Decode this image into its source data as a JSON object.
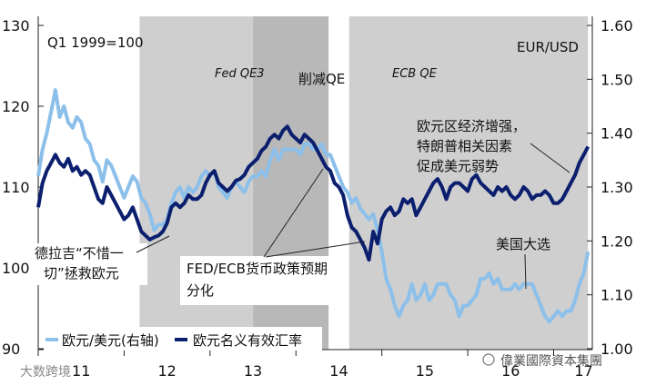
{
  "chart_data": {
    "type": "line",
    "title": "",
    "index_note": "Q1 1999=100",
    "right_axis_title": "EUR/USD",
    "x_ticks": [
      "11",
      "12",
      "13",
      "14",
      "15",
      "16",
      "17"
    ],
    "left_axis": {
      "ylim": [
        90,
        130
      ],
      "ticks": [
        "90",
        "100",
        "110",
        "120",
        "130"
      ]
    },
    "right_axis": {
      "ylim": [
        1.0,
        1.6
      ],
      "ticks": [
        "1.00",
        "1.10",
        "1.20",
        "1.30",
        "1.40",
        "1.50",
        "1.60"
      ]
    },
    "x_range": [
      2011.0,
      2017.45
    ],
    "shaded_periods": [
      {
        "label": "Fed QE3",
        "start": 2012.18,
        "end": 2013.5,
        "color": "#cfcfcf"
      },
      {
        "label": "削减QE",
        "start": 2013.5,
        "end": 2014.38,
        "color": "#b8b8b8"
      },
      {
        "label": "ECB QE",
        "start": 2014.62,
        "end": 2017.4,
        "color": "#cfcfcf"
      }
    ],
    "series": [
      {
        "name": "欧元/美元(右轴)",
        "axis": "right",
        "color": "#8cc0ea",
        "x": [
          2011.0,
          2011.05,
          2011.1,
          2011.15,
          2011.2,
          2011.25,
          2011.3,
          2011.35,
          2011.4,
          2011.45,
          2011.5,
          2011.55,
          2011.6,
          2011.65,
          2011.7,
          2011.75,
          2011.8,
          2011.85,
          2011.9,
          2011.95,
          2012.0,
          2012.05,
          2012.1,
          2012.15,
          2012.2,
          2012.25,
          2012.3,
          2012.35,
          2012.4,
          2012.45,
          2012.5,
          2012.55,
          2012.6,
          2012.65,
          2012.7,
          2012.75,
          2012.8,
          2012.85,
          2012.9,
          2012.95,
          2013.0,
          2013.05,
          2013.1,
          2013.15,
          2013.2,
          2013.25,
          2013.3,
          2013.35,
          2013.4,
          2013.45,
          2013.5,
          2013.55,
          2013.6,
          2013.65,
          2013.7,
          2013.75,
          2013.8,
          2013.85,
          2013.9,
          2013.95,
          2014.0,
          2014.05,
          2014.1,
          2014.15,
          2014.2,
          2014.25,
          2014.3,
          2014.35,
          2014.4,
          2014.45,
          2014.5,
          2014.55,
          2014.6,
          2014.65,
          2014.7,
          2014.75,
          2014.8,
          2014.85,
          2014.9,
          2014.95,
          2015.0,
          2015.05,
          2015.1,
          2015.15,
          2015.2,
          2015.25,
          2015.3,
          2015.35,
          2015.4,
          2015.45,
          2015.5,
          2015.55,
          2015.6,
          2015.65,
          2015.7,
          2015.75,
          2015.8,
          2015.85,
          2015.9,
          2015.95,
          2016.0,
          2016.05,
          2016.1,
          2016.15,
          2016.2,
          2016.25,
          2016.3,
          2016.35,
          2016.4,
          2016.45,
          2016.5,
          2016.55,
          2016.6,
          2016.65,
          2016.7,
          2016.75,
          2016.8,
          2016.85,
          2016.9,
          2016.95,
          2017.0,
          2017.05,
          2017.1,
          2017.15,
          2017.2,
          2017.25,
          2017.3,
          2017.35,
          2017.4
        ],
        "values": [
          1.32,
          1.37,
          1.4,
          1.44,
          1.48,
          1.43,
          1.45,
          1.42,
          1.41,
          1.43,
          1.42,
          1.39,
          1.38,
          1.35,
          1.34,
          1.31,
          1.35,
          1.34,
          1.32,
          1.3,
          1.28,
          1.3,
          1.32,
          1.31,
          1.28,
          1.27,
          1.25,
          1.22,
          1.23,
          1.23,
          1.24,
          1.27,
          1.29,
          1.3,
          1.28,
          1.3,
          1.29,
          1.3,
          1.32,
          1.33,
          1.32,
          1.33,
          1.3,
          1.29,
          1.28,
          1.3,
          1.31,
          1.3,
          1.29,
          1.31,
          1.32,
          1.32,
          1.33,
          1.32,
          1.35,
          1.37,
          1.35,
          1.37,
          1.37,
          1.37,
          1.37,
          1.36,
          1.38,
          1.38,
          1.37,
          1.37,
          1.38,
          1.36,
          1.36,
          1.34,
          1.32,
          1.3,
          1.29,
          1.27,
          1.28,
          1.26,
          1.25,
          1.24,
          1.25,
          1.22,
          1.18,
          1.13,
          1.11,
          1.08,
          1.06,
          1.08,
          1.09,
          1.12,
          1.09,
          1.1,
          1.12,
          1.09,
          1.1,
          1.12,
          1.12,
          1.12,
          1.1,
          1.09,
          1.06,
          1.08,
          1.08,
          1.09,
          1.1,
          1.13,
          1.13,
          1.14,
          1.12,
          1.13,
          1.11,
          1.11,
          1.11,
          1.12,
          1.11,
          1.12,
          1.12,
          1.12,
          1.1,
          1.08,
          1.06,
          1.05,
          1.06,
          1.07,
          1.06,
          1.07,
          1.07,
          1.09,
          1.12,
          1.14,
          1.18
        ]
      },
      {
        "name": "欧元名义有效汇率",
        "axis": "left",
        "color": "#0b1f6e",
        "x": [
          2011.0,
          2011.05,
          2011.1,
          2011.15,
          2011.2,
          2011.25,
          2011.3,
          2011.35,
          2011.4,
          2011.45,
          2011.5,
          2011.55,
          2011.6,
          2011.65,
          2011.7,
          2011.75,
          2011.8,
          2011.85,
          2011.9,
          2011.95,
          2012.0,
          2012.05,
          2012.1,
          2012.15,
          2012.2,
          2012.25,
          2012.3,
          2012.35,
          2012.4,
          2012.45,
          2012.5,
          2012.55,
          2012.6,
          2012.65,
          2012.7,
          2012.75,
          2012.8,
          2012.85,
          2012.9,
          2012.95,
          2013.0,
          2013.05,
          2013.1,
          2013.15,
          2013.2,
          2013.25,
          2013.3,
          2013.35,
          2013.4,
          2013.45,
          2013.5,
          2013.55,
          2013.6,
          2013.65,
          2013.7,
          2013.75,
          2013.8,
          2013.85,
          2013.9,
          2013.95,
          2014.0,
          2014.05,
          2014.1,
          2014.15,
          2014.2,
          2014.25,
          2014.3,
          2014.35,
          2014.4,
          2014.45,
          2014.5,
          2014.55,
          2014.6,
          2014.65,
          2014.7,
          2014.75,
          2014.8,
          2014.85,
          2014.9,
          2014.95,
          2015.0,
          2015.05,
          2015.1,
          2015.15,
          2015.2,
          2015.25,
          2015.3,
          2015.35,
          2015.4,
          2015.45,
          2015.5,
          2015.55,
          2015.6,
          2015.65,
          2015.7,
          2015.75,
          2015.8,
          2015.85,
          2015.9,
          2015.95,
          2016.0,
          2016.05,
          2016.1,
          2016.15,
          2016.2,
          2016.25,
          2016.3,
          2016.35,
          2016.4,
          2016.45,
          2016.5,
          2016.55,
          2016.6,
          2016.65,
          2016.7,
          2016.75,
          2016.8,
          2016.85,
          2016.9,
          2016.95,
          2017.0,
          2017.05,
          2017.1,
          2017.15,
          2017.2,
          2017.25,
          2017.3,
          2017.35,
          2017.4
        ],
        "values": [
          107.5,
          110.5,
          112.0,
          113.0,
          114.0,
          113.0,
          112.5,
          113.5,
          112.0,
          112.5,
          111.5,
          112.0,
          111.5,
          110.0,
          108.5,
          108.0,
          110.0,
          109.0,
          108.0,
          107.0,
          106.0,
          106.5,
          107.5,
          106.0,
          104.5,
          104.0,
          103.5,
          103.8,
          104.0,
          104.5,
          105.5,
          107.5,
          108.0,
          107.5,
          108.0,
          109.0,
          108.5,
          108.5,
          109.0,
          110.5,
          111.5,
          112.0,
          110.5,
          110.0,
          109.5,
          110.0,
          110.8,
          111.0,
          111.5,
          112.5,
          113.0,
          113.5,
          114.5,
          115.0,
          116.0,
          116.5,
          116.0,
          117.0,
          117.5,
          116.5,
          116.0,
          115.5,
          116.5,
          116.0,
          115.5,
          114.5,
          113.5,
          112.5,
          112.0,
          110.5,
          110.0,
          109.0,
          106.5,
          105.0,
          104.5,
          103.5,
          102.5,
          101.0,
          104.5,
          103.0,
          106.0,
          107.0,
          107.5,
          106.5,
          107.0,
          108.5,
          108.0,
          108.5,
          106.5,
          107.5,
          108.5,
          109.5,
          110.5,
          111.0,
          110.0,
          108.5,
          110.0,
          110.5,
          110.5,
          110.0,
          109.5,
          111.0,
          111.5,
          110.5,
          110.0,
          109.5,
          109.0,
          110.0,
          109.5,
          110.0,
          109.0,
          108.5,
          109.0,
          110.0,
          109.5,
          108.5,
          109.0,
          109.0,
          109.5,
          109.0,
          108.0,
          108.0,
          108.5,
          109.5,
          110.5,
          111.5,
          113.0,
          114.0,
          115.0
        ]
      }
    ],
    "annotations": [
      {
        "text": "德拉吉“不惜一",
        "text2": "切”拯救欧元"
      },
      {
        "text": "FED/ECB货币政策预期",
        "text2": "分化"
      },
      {
        "text": "欧元区经济增强，",
        "text2": "特朗普相关因素",
        "text3": "促成美元弱势"
      },
      {
        "text": "美国大选"
      }
    ],
    "legend": [
      {
        "name": "欧元/美元(右轴)",
        "color": "#8cc0ea"
      },
      {
        "name": "欧元名义有效汇率",
        "color": "#0b1f6e"
      }
    ]
  },
  "watermarks": {
    "left": "大数跨境",
    "right": "偉業國際資本集團"
  }
}
